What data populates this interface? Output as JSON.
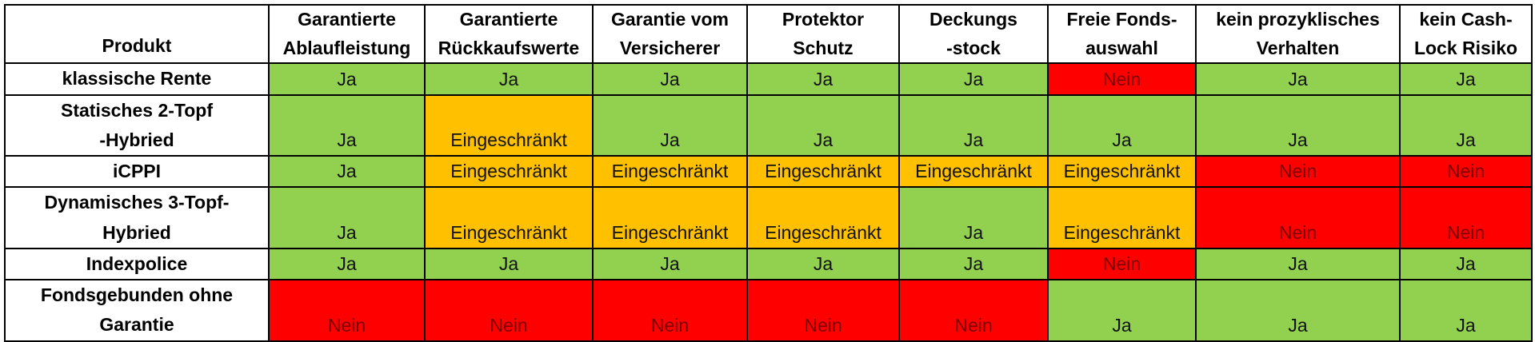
{
  "table": {
    "columns": [
      "Produkt",
      "Garantierte\nAblaufleistung",
      "Garantierte\nRückkaufswerte",
      "Garantie vom\nVersicherer",
      "Protektor\nSchutz",
      "Deckungs\n-stock",
      "Freie Fonds-\nauswahl",
      "kein prozyklisches\nVerhalten",
      "kein Cash-\nLock Risiko"
    ],
    "rows": [
      {
        "product": "klassische Rente",
        "cells": [
          "Ja",
          "Ja",
          "Ja",
          "Ja",
          "Ja",
          "Nein",
          "Ja",
          "Ja"
        ]
      },
      {
        "product": "Statisches 2-Topf\n-Hybried",
        "cells": [
          "Ja",
          "Eingeschränkt",
          "Ja",
          "Ja",
          "Ja",
          "Ja",
          "Ja",
          "Ja"
        ]
      },
      {
        "product": "iCPPI",
        "cells": [
          "Ja",
          "Eingeschränkt",
          "Eingeschränkt",
          "Eingeschränkt",
          "Eingeschränkt",
          "Eingeschränkt",
          "Nein",
          "Nein"
        ]
      },
      {
        "product": "Dynamisches 3-Topf-\nHybried",
        "cells": [
          "Ja",
          "Eingeschränkt",
          "Eingeschränkt",
          "Eingeschränkt",
          "Ja",
          "Eingeschränkt",
          "Nein",
          "Nein"
        ]
      },
      {
        "product": "Indexpolice",
        "cells": [
          "Ja",
          "Ja",
          "Ja",
          "Ja",
          "Ja",
          "Nein",
          "Ja",
          "Ja"
        ]
      },
      {
        "product": "Fondsgebunden ohne\nGarantie",
        "cells": [
          "Nein",
          "Nein",
          "Nein",
          "Nein",
          "Nein",
          "Ja",
          "Ja",
          "Ja"
        ]
      }
    ]
  },
  "colors": {
    "Ja": "#92d050",
    "Eingeschränkt": "#ffc000",
    "Nein": "#ff0000"
  }
}
